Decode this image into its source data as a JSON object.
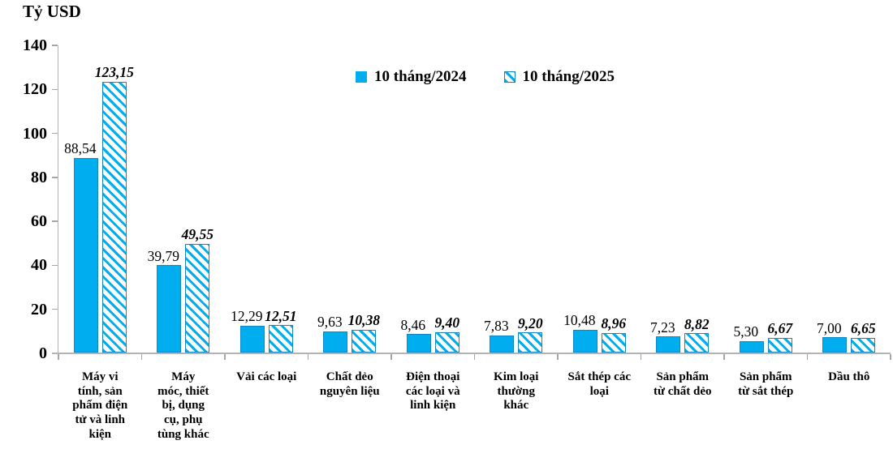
{
  "title": "Tỷ USD",
  "chart_data": {
    "type": "bar",
    "title": "Tỷ USD",
    "ylabel": "Tỷ USD",
    "xlabel": "",
    "ylim": [
      0,
      140
    ],
    "yticks": [
      0,
      20,
      40,
      60,
      80,
      100,
      120,
      140
    ],
    "grid": false,
    "legend_position": "top-center",
    "categories": [
      "Máy vi tính, sản phẩm điện tử và linh kiện",
      "Máy móc, thiết bị, dụng cụ, phụ tùng khác",
      "Vải các loại",
      "Chất dẻo nguyên liệu",
      "Điện thoại các loại và linh kiện",
      "Kim loại thường khác",
      "Sắt thép các loại",
      "Sản phẩm từ chất dẻo",
      "Sản phẩm từ sắt thép",
      "Dầu thô"
    ],
    "category_lines": [
      "Máy vi\ntính, sản\nphẩm điện\ntử và linh\nkiện",
      "Máy\nmóc, thiết\nbị, dụng\ncụ, phụ\ntùng khác",
      "Vải các loại",
      "Chất dẻo\nnguyên liệu",
      "Điện thoại\ncác loại và\nlinh kiện",
      "Kim loại\nthường\nkhác",
      "Sắt thép các\nloại",
      "Sản phẩm\ntừ chất dẻo",
      "Sản phẩm\ntừ sắt thép",
      "Dầu thô"
    ],
    "series": [
      {
        "name": "10 tháng/2024",
        "style": "solid",
        "values": [
          88.54,
          39.79,
          12.29,
          9.63,
          8.46,
          7.83,
          10.48,
          7.23,
          5.3,
          7.0
        ],
        "display": [
          "88,54",
          "39,79",
          "12,29",
          "9,63",
          "8,46",
          "7,83",
          "10,48",
          "7,23",
          "5,30",
          "7,00"
        ]
      },
      {
        "name": "10 tháng/2025",
        "style": "hatched",
        "values": [
          123.15,
          49.55,
          12.51,
          10.38,
          9.4,
          9.2,
          8.96,
          8.82,
          6.67,
          6.65
        ],
        "display": [
          "123,15",
          "49,55",
          "12,51",
          "10,38",
          "9,40",
          "9,20",
          "8,96",
          "8,82",
          "6,67",
          "6,65"
        ]
      }
    ],
    "colors": {
      "bar_fill": "#00AEEF",
      "bar_border": "#1287C5",
      "hatch_background": "#FFFFFF",
      "axis": "#A6A6A6",
      "text": "#000000"
    }
  }
}
